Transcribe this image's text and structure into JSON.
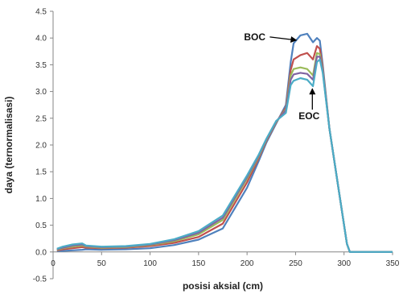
{
  "chart_data": {
    "type": "line",
    "xlabel": "posisi aksial (cm)",
    "ylabel": "daya (ternormalisasi)",
    "xlim": [
      0,
      350
    ],
    "ylim": [
      -0.5,
      4.5
    ],
    "x_ticks": [
      0,
      50,
      100,
      150,
      200,
      250,
      300,
      350
    ],
    "y_ticks": [
      -0.5,
      0.0,
      0.5,
      1.0,
      1.5,
      2.0,
      2.5,
      3.0,
      3.5,
      4.0,
      4.5
    ],
    "y_tick_labels": [
      "-0.5",
      "0.0",
      "0.5",
      "1.0",
      "1.5",
      "2.0",
      "2.5",
      "3.0",
      "3.5",
      "4.0",
      "4.5"
    ],
    "grid": false,
    "legend": "none",
    "x": [
      4,
      10,
      20,
      30,
      34,
      50,
      75,
      100,
      125,
      150,
      175,
      200,
      212,
      220,
      230,
      240,
      245,
      248,
      255,
      262,
      268,
      272,
      275,
      278,
      285,
      295,
      303,
      306,
      310,
      320,
      350
    ],
    "series": [
      {
        "color": "#4F81BD",
        "values": [
          0.02,
          0.02,
          0.03,
          0.04,
          0.05,
          0.04,
          0.05,
          0.07,
          0.13,
          0.23,
          0.44,
          1.2,
          1.7,
          2.05,
          2.4,
          2.75,
          3.55,
          3.9,
          4.05,
          4.08,
          3.92,
          4.0,
          3.95,
          3.5,
          2.3,
          1.1,
          0.15,
          0.0,
          0.0,
          0.0,
          0.0
        ]
      },
      {
        "color": "#C0504D",
        "values": [
          0.03,
          0.05,
          0.07,
          0.09,
          0.08,
          0.07,
          0.08,
          0.11,
          0.17,
          0.28,
          0.53,
          1.3,
          1.75,
          2.08,
          2.42,
          2.7,
          3.4,
          3.6,
          3.68,
          3.72,
          3.6,
          3.85,
          3.8,
          3.45,
          2.3,
          1.1,
          0.15,
          0.0,
          0.0,
          0.0,
          0.0
        ]
      },
      {
        "color": "#9BBB59",
        "values": [
          0.04,
          0.07,
          0.1,
          0.12,
          0.1,
          0.08,
          0.09,
          0.13,
          0.2,
          0.33,
          0.6,
          1.37,
          1.78,
          2.1,
          2.43,
          2.67,
          3.3,
          3.42,
          3.45,
          3.42,
          3.3,
          3.72,
          3.7,
          3.4,
          2.3,
          1.1,
          0.15,
          0.0,
          0.0,
          0.0,
          0.0
        ]
      },
      {
        "color": "#8064A2",
        "values": [
          0.05,
          0.08,
          0.12,
          0.14,
          0.11,
          0.09,
          0.1,
          0.14,
          0.22,
          0.36,
          0.64,
          1.4,
          1.8,
          2.11,
          2.44,
          2.65,
          3.22,
          3.32,
          3.35,
          3.33,
          3.22,
          3.65,
          3.65,
          3.38,
          2.3,
          1.1,
          0.15,
          0.0,
          0.0,
          0.0,
          0.0
        ]
      },
      {
        "color": "#4BACC6",
        "values": [
          0.06,
          0.1,
          0.14,
          0.16,
          0.12,
          0.1,
          0.11,
          0.15,
          0.24,
          0.39,
          0.68,
          1.43,
          1.82,
          2.12,
          2.45,
          2.6,
          3.12,
          3.2,
          3.25,
          3.22,
          3.1,
          3.55,
          3.6,
          3.35,
          2.3,
          1.1,
          0.15,
          0.0,
          0.0,
          0.0,
          0.0
        ]
      }
    ],
    "annotations": [
      {
        "text": "BOC",
        "x": 245,
        "y": 4.02
      },
      {
        "text": "EOC",
        "x": 264,
        "y": 2.48
      }
    ]
  }
}
